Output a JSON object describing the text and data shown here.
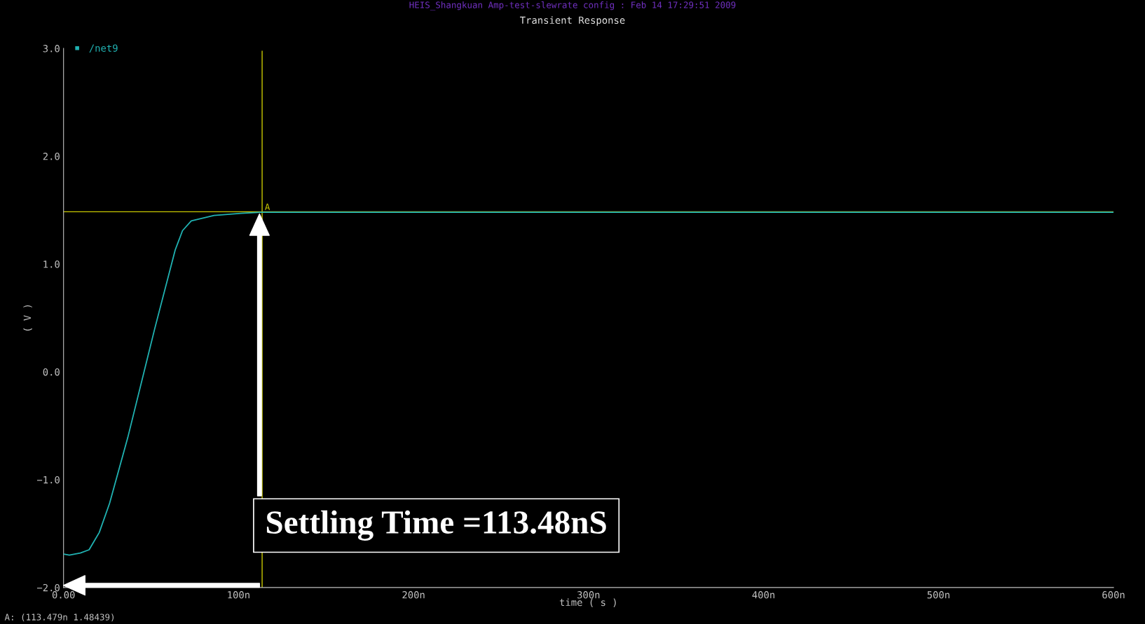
{
  "chart_data": {
    "type": "line",
    "title": "Transient Response",
    "subtitle": "HEIS_Shangkuan Amp-test-slewrate config : Feb 14 17:29:51 2009",
    "xlabel": "time ( s )",
    "ylabel": "( V )",
    "annotations": [
      "Settling Time =113.48nS",
      "A: (113.479n 1.48439)"
    ],
    "series": [
      {
        "name": "/net9",
        "color": "#20b2b2",
        "x": [
          0,
          3.3,
          9.6,
          14.6,
          20.4,
          26.3,
          36.7,
          52.1,
          63.8,
          68,
          73,
          86,
          101.4,
          112.6,
          200,
          300,
          342,
          400,
          482,
          500,
          600
        ],
        "values": [
          -1.69,
          -1.7,
          -1.68,
          -1.65,
          -1.49,
          -1.22,
          -0.61,
          0.4,
          1.13,
          1.31,
          1.4,
          1.45,
          1.47,
          1.48,
          1.48,
          1.48,
          1.48,
          1.48,
          1.48,
          1.48,
          1.48
        ]
      }
    ],
    "xlim": [
      0,
      600
    ],
    "ylim": [
      -2,
      3
    ],
    "xticks": [
      {
        "value": 0,
        "label": "0.00"
      },
      {
        "value": 100,
        "label": "100n"
      },
      {
        "value": 200,
        "label": "200n"
      },
      {
        "value": 300,
        "label": "300n"
      },
      {
        "value": 400,
        "label": "400n"
      },
      {
        "value": 500,
        "label": "500n"
      },
      {
        "value": 600,
        "label": "600n"
      }
    ],
    "yticks": [
      {
        "value": -2,
        "label": "−2.0"
      },
      {
        "value": -1,
        "label": "−1.0"
      },
      {
        "value": 0,
        "label": "0.0"
      },
      {
        "value": 1,
        "label": "1.0"
      },
      {
        "value": 2,
        "label": "2.0"
      },
      {
        "value": 3,
        "label": "3.0"
      }
    ],
    "ref_lines": [
      {
        "axis": "x",
        "value": 113.479,
        "label": "A",
        "color": "#c8c800"
      },
      {
        "axis": "y",
        "value": 1.48439,
        "color": "#c8c800"
      }
    ],
    "grid": false,
    "legend": "top left",
    "marker": "none",
    "line_style": "solid"
  }
}
